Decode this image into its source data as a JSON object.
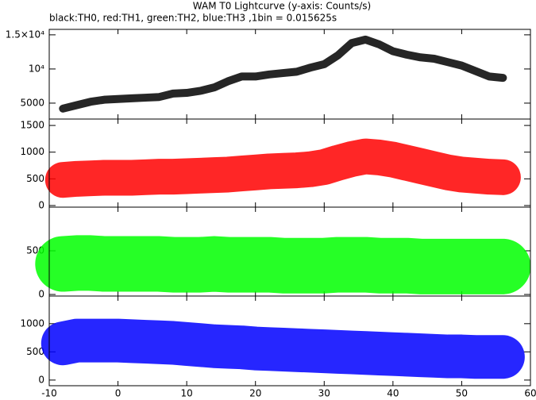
{
  "chart_data": [
    {
      "type": "line",
      "title": "WAM T0 Lightcurve (y-axis: Counts/s)",
      "subtitle": "black:TH0, red:TH1, green:TH2, blue:TH3 ,1bin = 0.015625s",
      "x": [
        -8,
        -6,
        -4,
        -2,
        0,
        2,
        4,
        6,
        8,
        10,
        12,
        14,
        16,
        18,
        20,
        22,
        24,
        26,
        28,
        30,
        32,
        34,
        36,
        38,
        40,
        42,
        44,
        46,
        48,
        50,
        52,
        54,
        56
      ],
      "values": [
        4200,
        4700,
        5200,
        5500,
        5600,
        5700,
        5800,
        5900,
        6400,
        6500,
        6800,
        7300,
        8200,
        8900,
        8900,
        9200,
        9400,
        9600,
        10200,
        10700,
        12000,
        13800,
        14300,
        13600,
        12600,
        12100,
        11700,
        11500,
        11000,
        10500,
        9700,
        8900,
        8700
      ],
      "color": "#000000",
      "xlim": [
        -10,
        60
      ],
      "ylim": [
        2670,
        15800
      ],
      "yticks": [
        {
          "value": 5000,
          "label": "5000"
        },
        {
          "value": 10000,
          "label": "10⁴"
        },
        {
          "value": 15000,
          "label": "1.5×10⁴"
        }
      ]
    },
    {
      "type": "line",
      "x": [
        -8,
        -6,
        -4,
        -2,
        0,
        2,
        4,
        6,
        8,
        10,
        12,
        14,
        16,
        18,
        20,
        22,
        24,
        26,
        28,
        30,
        32,
        34,
        36,
        38,
        40,
        42,
        44,
        46,
        48,
        50,
        52,
        54,
        56
      ],
      "values": [
        480,
        500,
        510,
        520,
        520,
        520,
        530,
        540,
        540,
        550,
        560,
        570,
        580,
        600,
        620,
        640,
        650,
        660,
        680,
        720,
        800,
        870,
        920,
        900,
        860,
        800,
        740,
        680,
        620,
        580,
        560,
        540,
        530
      ],
      "color": "#ff0000",
      "xlim": [
        -10,
        60
      ],
      "ylim": [
        -30,
        1620
      ],
      "yticks": [
        0,
        500,
        1000,
        1500
      ]
    },
    {
      "type": "line",
      "x": [
        -8,
        -6,
        -4,
        -2,
        0,
        2,
        4,
        6,
        8,
        10,
        12,
        14,
        16,
        18,
        20,
        22,
        24,
        26,
        28,
        30,
        32,
        34,
        36,
        38,
        40,
        42,
        44,
        46,
        48,
        50,
        52,
        54,
        56
      ],
      "values": [
        350,
        360,
        360,
        350,
        350,
        350,
        350,
        350,
        340,
        340,
        340,
        350,
        340,
        340,
        340,
        340,
        330,
        330,
        330,
        330,
        340,
        340,
        340,
        330,
        330,
        330,
        320,
        320,
        320,
        320,
        320,
        320,
        320
      ],
      "color": "#00ff00",
      "xlim": [
        -10,
        60
      ],
      "ylim": [
        -18,
        1000
      ],
      "yticks": [
        0,
        500
      ]
    },
    {
      "type": "line",
      "x": [
        -8,
        -6,
        -4,
        -2,
        0,
        2,
        4,
        6,
        8,
        10,
        12,
        14,
        16,
        18,
        20,
        22,
        24,
        26,
        28,
        30,
        32,
        34,
        36,
        38,
        40,
        42,
        44,
        46,
        48,
        50,
        52,
        54,
        56
      ],
      "values": [
        650,
        700,
        700,
        700,
        700,
        690,
        680,
        670,
        660,
        640,
        620,
        600,
        590,
        580,
        560,
        550,
        540,
        530,
        520,
        510,
        500,
        490,
        480,
        470,
        460,
        450,
        440,
        430,
        420,
        420,
        410,
        410,
        410
      ],
      "color": "#0000ff",
      "xlim": [
        -10,
        60
      ],
      "ylim": [
        -100,
        1490
      ],
      "yticks": [
        0,
        500,
        1000
      ],
      "xticks": [
        -10,
        0,
        10,
        20,
        30,
        40,
        50,
        60
      ]
    }
  ]
}
